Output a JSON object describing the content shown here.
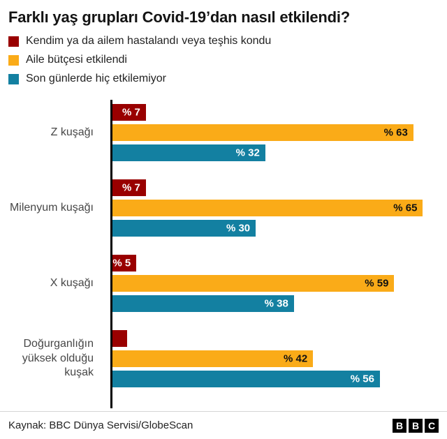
{
  "title": "Farklı yaş grupları Covid-19’dan nasıl etkilendi?",
  "legend": [
    {
      "label": "Kendim ya da ailem hastalandı veya teşhis kondu",
      "color": "#990000"
    },
    {
      "label": "Aile bütçesi etkilendi",
      "color": "#FAAB18"
    },
    {
      "label": "Son günlerde hiç etkilemiyor",
      "color": "#1380A1"
    }
  ],
  "chart_data": {
    "type": "bar",
    "orientation": "horizontal",
    "title": "Farklı yaş grupları Covid-19’dan nasıl etkilendi?",
    "xlabel": "",
    "ylabel": "",
    "xlim": [
      0,
      68
    ],
    "grid": false,
    "legend_position": "top",
    "categories": [
      "Z kuşağı",
      "Milenyum kuşağı",
      "X kuşağı",
      "Doğurganlığın yüksek olduğu kuşak"
    ],
    "series": [
      {
        "name": "Kendim ya da ailem hastalandı veya teşhis kondu",
        "color": "#990000",
        "label_color": "#ffffff",
        "values": [
          7,
          7,
          5,
          3
        ],
        "labels": [
          "% 7",
          "% 7",
          "% 5",
          ""
        ]
      },
      {
        "name": "Aile bütçesi etkilendi",
        "color": "#FAAB18",
        "label_color": "#111111",
        "values": [
          63,
          65,
          59,
          42
        ],
        "labels": [
          "% 63",
          "% 65",
          "% 59",
          "% 42"
        ]
      },
      {
        "name": "Son günlerde hiç etkilemiyor",
        "color": "#1380A1",
        "label_color": "#ffffff",
        "values": [
          32,
          30,
          38,
          56
        ],
        "labels": [
          "% 32",
          "% 30",
          "% 38",
          "% 56"
        ]
      }
    ]
  },
  "footer": {
    "source": "Kaynak: BBC Dünya Servisi/GlobeScan",
    "logo_letters": [
      "B",
      "B",
      "C"
    ]
  }
}
